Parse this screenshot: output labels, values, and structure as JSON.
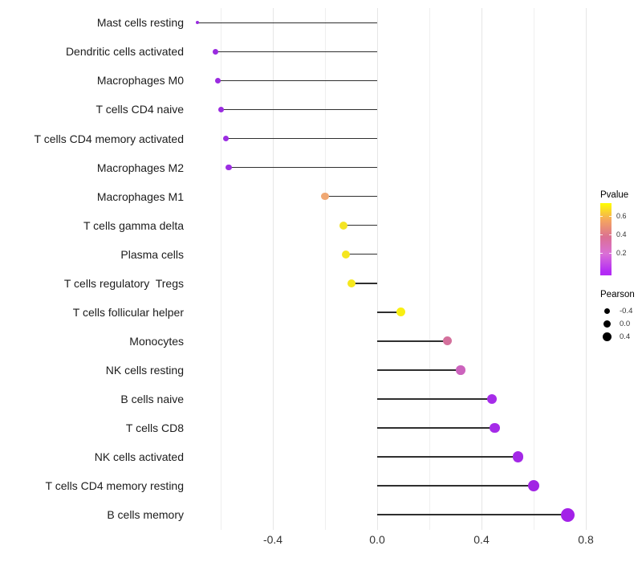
{
  "chart_data": {
    "type": "lollipop",
    "title": "",
    "xlabel": "",
    "ylabel": "",
    "grid": true,
    "background": "#ffffff",
    "stem_color": "#2f2f2f",
    "xlim": [
      -0.72,
      0.88
    ],
    "x_tick_labels": [
      "-0.4",
      "0.0",
      "0.4",
      "0.8"
    ],
    "x_tick_values": [
      -0.4,
      0.0,
      0.4,
      0.8
    ],
    "grid_values": [
      -0.6,
      -0.4,
      -0.2,
      0.0,
      0.2,
      0.4,
      0.6,
      0.8
    ],
    "categories": [
      "Mast cells resting",
      "Dendritic cells activated",
      "Macrophages M0",
      "T cells CD4 naive",
      "T cells CD4 memory activated",
      "Macrophages M2",
      "Macrophages M1",
      "T cells gamma delta",
      "Plasma cells",
      "T cells regulatory  Tregs",
      "T cells follicular helper",
      "Monocytes",
      "NK cells resting",
      "B cells naive",
      "T cells CD8",
      "NK cells activated",
      "T cells CD4 memory resting",
      "B cells memory"
    ],
    "series": [
      {
        "name": "Pearson correlation",
        "values": [
          -0.69,
          -0.62,
          -0.61,
          -0.6,
          -0.58,
          -0.57,
          -0.2,
          -0.13,
          -0.12,
          -0.1,
          0.09,
          0.27,
          0.32,
          0.44,
          0.45,
          0.54,
          0.6,
          0.73
        ]
      }
    ],
    "point_colors": [
      "#9A2BE0",
      "#9A2BE0",
      "#9A2BE0",
      "#9A2BE0",
      "#9C2DE2",
      "#9C2DE2",
      "#F0A873",
      "#F4E424",
      "#F5E61E",
      "#F6E81C",
      "#F9EF12",
      "#D4709C",
      "#CC63BD",
      "#A62CE9",
      "#A52BE8",
      "#A328E6",
      "#A124E4",
      "#A321E8"
    ],
    "point_diameters": [
      4,
      7,
      7,
      7,
      7.5,
      7.5,
      9.5,
      10,
      10,
      10,
      11,
      11,
      11.5,
      12.5,
      12.5,
      13.5,
      14.5,
      17
    ],
    "legend_pvalue": {
      "title": "Pvalue",
      "tick_labels": [
        "0.6",
        "0.4",
        "0.2"
      ],
      "gradient_colors": [
        "#FFFF00",
        "#F4A460",
        "#DB7093",
        "#DA70D6",
        "#B32BF5"
      ],
      "gradient_stops_pct": [
        0,
        24,
        47,
        70,
        95
      ]
    },
    "legend_pearson": {
      "title": "Pearson",
      "items": [
        {
          "label": "-0.4",
          "diameter": 7
        },
        {
          "label": "0.0",
          "diameter": 9
        },
        {
          "label": "0.4",
          "diameter": 11
        }
      ]
    },
    "legend_position": "right"
  }
}
